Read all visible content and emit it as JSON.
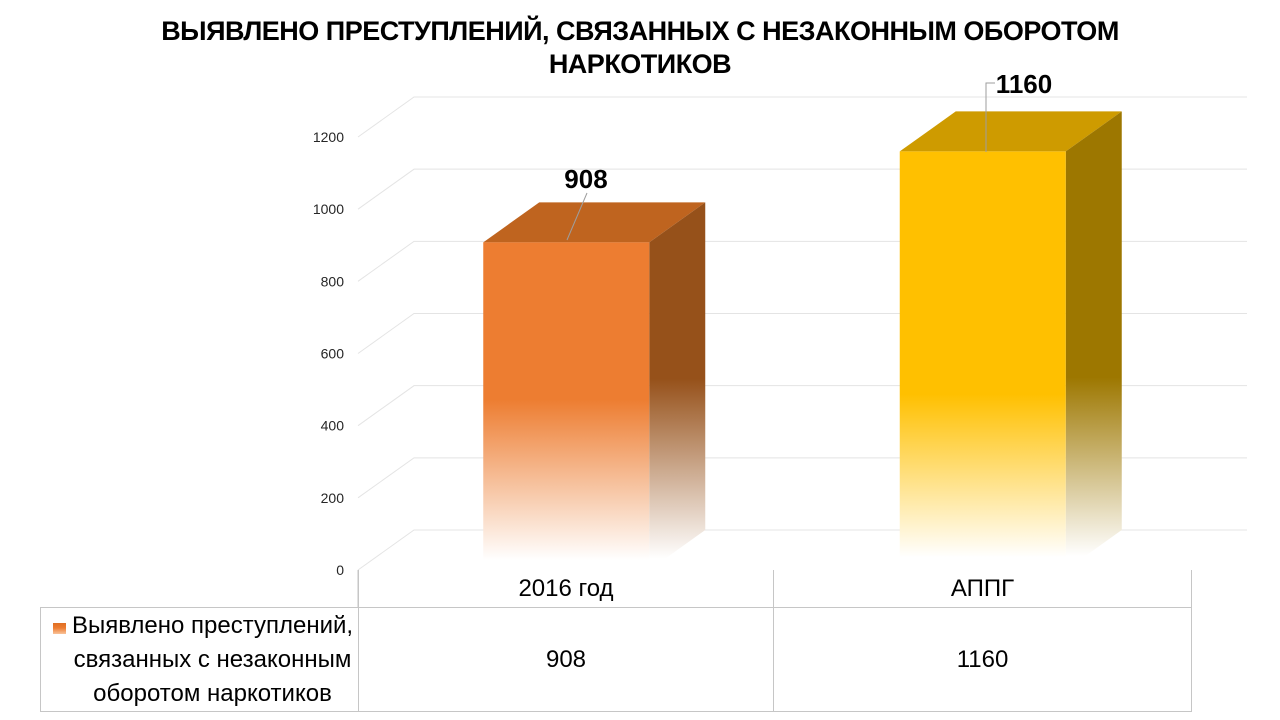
{
  "title": {
    "line1": "ВЫЯВЛЕНО ПРЕСТУПЛЕНИЙ, СВЯЗАННЫХ С НЕЗАКОННЫМ ОБОРОТОМ",
    "line2": "НАРКОТИКОВ"
  },
  "chart_data": {
    "type": "bar",
    "style": "3d-column",
    "title": "ВЫЯВЛЕНО ПРЕСТУПЛЕНИЙ, СВЯЗАННЫХ С НЕЗАКОННЫМ ОБОРОТОМ НАРКОТИКОВ",
    "categories": [
      "2016 год",
      "АППГ"
    ],
    "series": [
      {
        "name": "Выявлено преступлений, связанных с незаконным оборотом наркотиков",
        "values": [
          908,
          1160
        ]
      }
    ],
    "ylim": [
      0,
      1200
    ],
    "yticks": [
      0,
      200,
      400,
      600,
      800,
      1000,
      1200
    ],
    "grid": true,
    "legend_position": "bottom-left-data-table",
    "data_table_shown": true,
    "bar_colors": [
      {
        "front": "#ED7D31",
        "top": "#BF641F",
        "side": "#96511A"
      },
      {
        "front": "#FFC000",
        "top": "#CE9B00",
        "side": "#9D7700"
      }
    ],
    "gridline_color": "#E4E4E4",
    "leader_line_color": "#9E9E9E",
    "tick_label_color": "#262626"
  },
  "table": {
    "legend_lines": [
      "Выявлено преступлений,",
      "связанных с незаконным",
      "оборотом наркотиков"
    ]
  }
}
